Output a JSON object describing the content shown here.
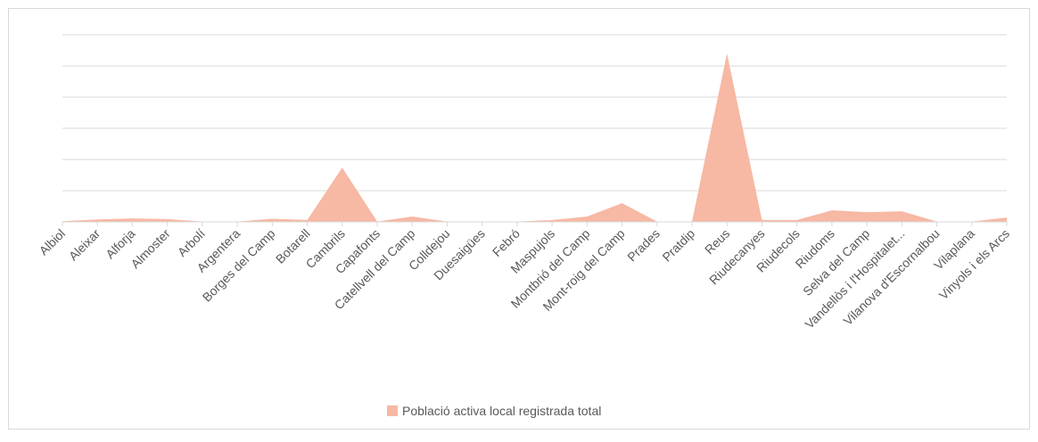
{
  "chart_data": {
    "type": "area",
    "categories": [
      "Albiol",
      "Aleixar",
      "Alforja",
      "Almoster",
      "Arbolí",
      "Argentera",
      "Borges del Camp",
      "Botarell",
      "Cambrils",
      "Capafonts",
      "Catellvell del Camp",
      "Colldejou",
      "Duesaigües",
      "Febró",
      "Maspujols",
      "Montbrió del Camp",
      "Mont-roig del Camp",
      "Prades",
      "Pratdip",
      "Reus",
      "Riudecanyes",
      "Riudecols",
      "Riudoms",
      "Selva del Camp",
      "Vandellòs i l'Hospitalet...",
      "Vilanova d'Escornalbou",
      "Vilaplana",
      "Vinyols i els Arcs"
    ],
    "series": [
      {
        "name": "Població activa local registrada total",
        "color": "#f7b8a4",
        "values": [
          0.02,
          0.08,
          0.11,
          0.09,
          0.01,
          0.01,
          0.1,
          0.06,
          1.74,
          0.01,
          0.17,
          0.01,
          0.01,
          0.01,
          0.06,
          0.17,
          0.6,
          0.01,
          0.01,
          5.4,
          0.06,
          0.06,
          0.37,
          0.31,
          0.34,
          0.01,
          0.01,
          0.14
        ]
      }
    ],
    "ylim": [
      0,
      6
    ],
    "yticks": [
      0,
      1,
      2,
      3,
      4,
      5,
      6
    ],
    "grid": true,
    "legend": "bottom"
  }
}
